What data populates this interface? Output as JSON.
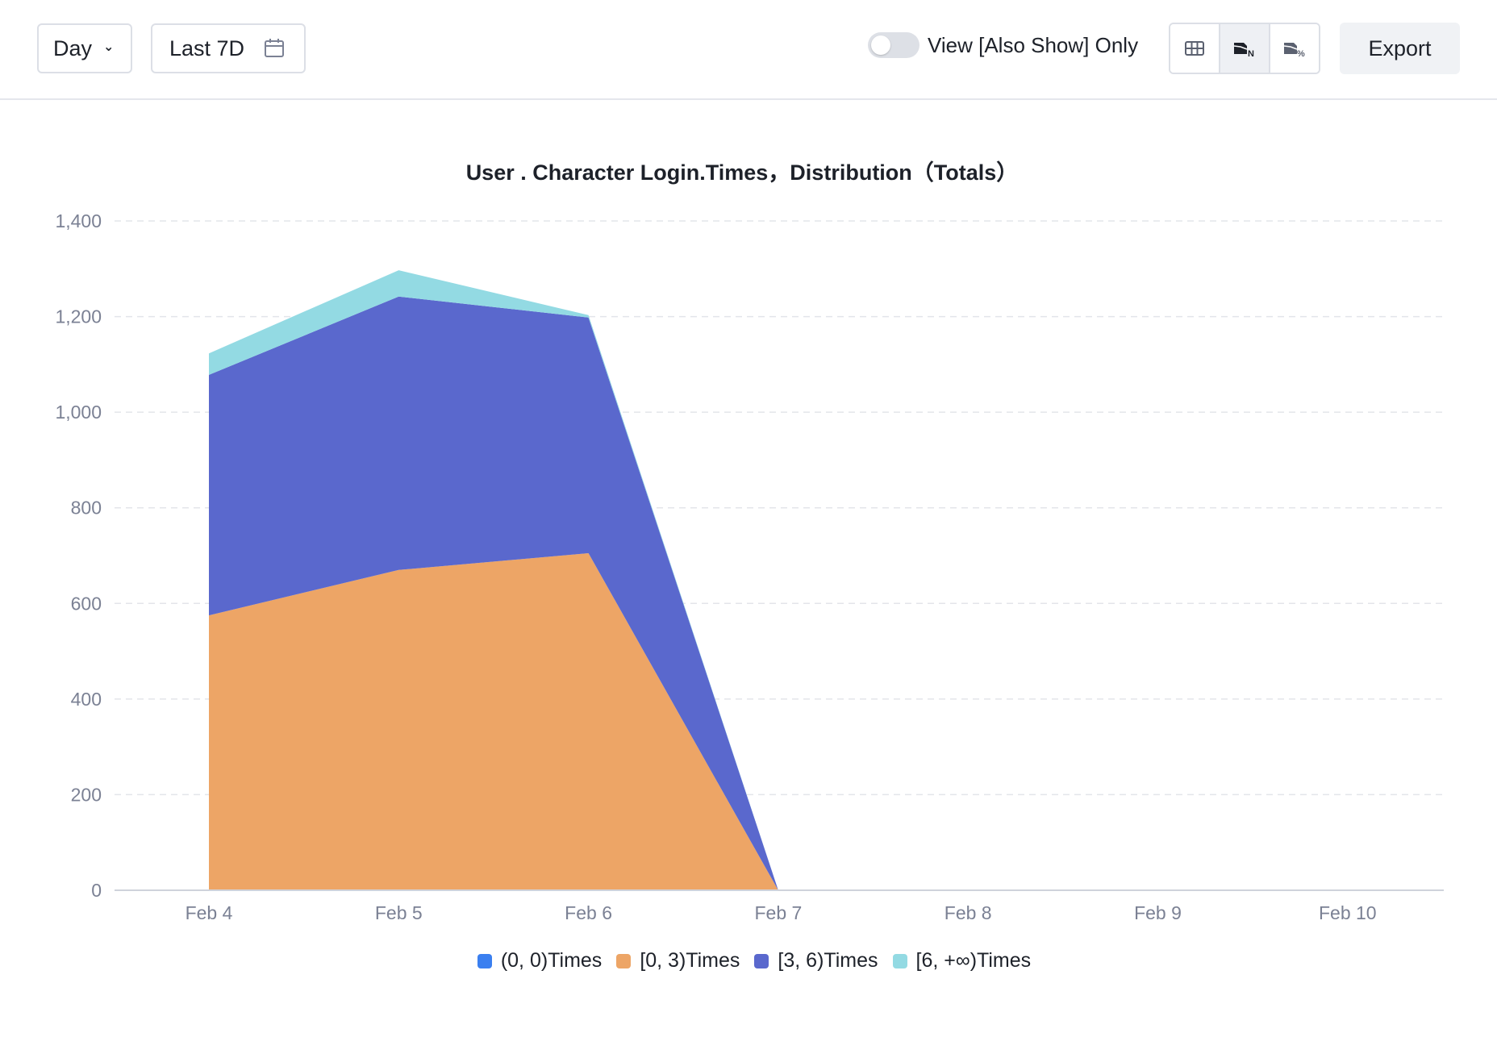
{
  "toolbar": {
    "granularity": "Day",
    "date_range": "Last 7D",
    "toggle_label": "View [Also Show] Only",
    "toggle_on": false,
    "view_buttons": [
      "table-view",
      "stacked-number-view",
      "stacked-percent-view"
    ],
    "active_view": "stacked-number-view",
    "export_label": "Export"
  },
  "chart_data": {
    "type": "area",
    "stacked": true,
    "title": "User . Character Login.Times，Distribution（Totals）",
    "xlabel": "",
    "ylabel": "",
    "categories": [
      "Feb 4",
      "Feb 5",
      "Feb 6",
      "Feb 7",
      "Feb 8",
      "Feb 9",
      "Feb 10"
    ],
    "ylim": [
      0,
      1400
    ],
    "yticks": [
      "0",
      "200",
      "400",
      "600",
      "800",
      "1,000",
      "1,200",
      "1,400"
    ],
    "ytick_values": [
      0,
      200,
      400,
      600,
      800,
      1000,
      1200,
      1400
    ],
    "grid": true,
    "legend_position": "bottom",
    "series": [
      {
        "name": "(0, 0)Times",
        "color": "#3a7ff0",
        "values": [
          0,
          0,
          0,
          0,
          null,
          null,
          null
        ]
      },
      {
        "name": "[0, 3)Times",
        "color": "#eda566",
        "values": [
          575,
          670,
          705,
          0,
          null,
          null,
          null
        ]
      },
      {
        "name": "[3, 6)Times",
        "color": "#5a68cd",
        "values": [
          503,
          572,
          493,
          0,
          null,
          null,
          null
        ]
      },
      {
        "name": "[6, +∞)Times",
        "color": "#93dae3",
        "values": [
          45,
          55,
          5,
          0,
          null,
          null,
          null
        ]
      }
    ]
  }
}
